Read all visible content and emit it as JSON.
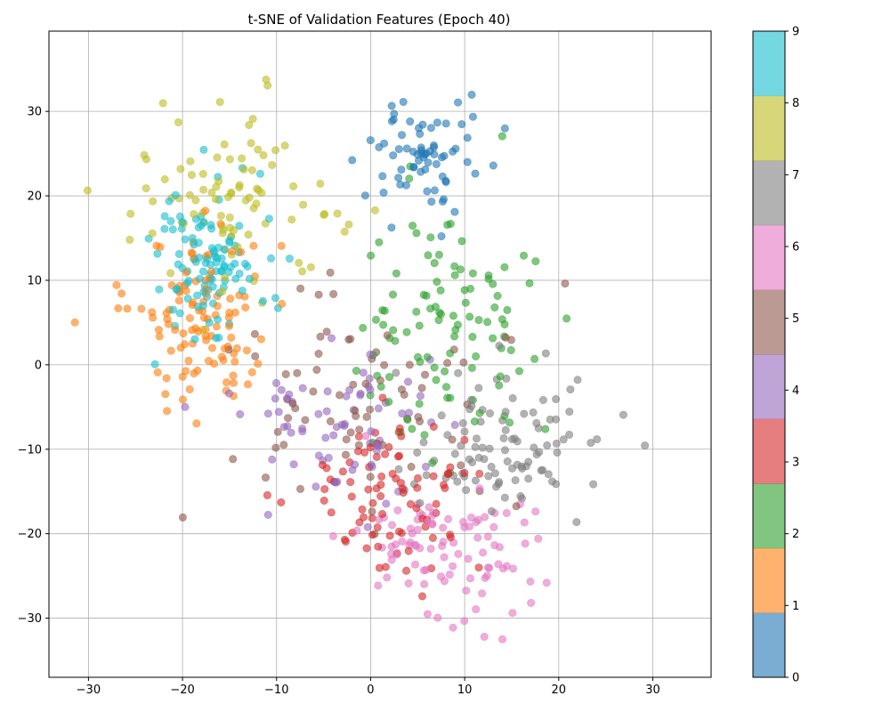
{
  "chart_data": {
    "type": "scatter",
    "title": "t-SNE of Validation Features (Epoch 40)",
    "xlabel": "",
    "ylabel": "",
    "xlim": [
      -34.2,
      36.2
    ],
    "ylim": [
      -37,
      39.5
    ],
    "x_ticks": [
      -30,
      -20,
      -10,
      0,
      10,
      20,
      30
    ],
    "y_ticks": [
      -30,
      -20,
      -10,
      0,
      10,
      20,
      30
    ],
    "grid": true,
    "colormap": "tab10",
    "marker_alpha": 0.6,
    "colorbar": {
      "ticks": [
        0,
        1,
        2,
        3,
        4,
        5,
        6,
        7,
        8,
        9
      ],
      "range": [
        0,
        9
      ],
      "colors": [
        "#1f77b4",
        "#ff7f0e",
        "#2ca02c",
        "#d62728",
        "#9467bd",
        "#8c564b",
        "#e377c2",
        "#7f7f7f",
        "#bcbd22",
        "#17becf"
      ]
    },
    "clusters": [
      {
        "label": 0,
        "center": [
          5.5,
          25.0
        ],
        "spread": [
          5.5,
          6.0
        ],
        "count": 70
      },
      {
        "label": 1,
        "center": [
          -18.0,
          5.0
        ],
        "spread": [
          7.0,
          9.0
        ],
        "count": 110
      },
      {
        "label": 2,
        "center": [
          8.0,
          5.0
        ],
        "spread": [
          9.0,
          14.0
        ],
        "count": 105
      },
      {
        "label": 3,
        "center": [
          2.0,
          -15.0
        ],
        "spread": [
          8.0,
          9.0
        ],
        "count": 85
      },
      {
        "label": 4,
        "center": [
          -2.0,
          -8.0
        ],
        "spread": [
          12.0,
          9.0
        ],
        "count": 70
      },
      {
        "label": 5,
        "center": [
          0.0,
          -5.0
        ],
        "spread": [
          14.0,
          12.0
        ],
        "count": 70
      },
      {
        "label": 6,
        "center": [
          7.0,
          -22.0
        ],
        "spread": [
          9.0,
          7.0
        ],
        "count": 95
      },
      {
        "label": 7,
        "center": [
          15.0,
          -8.0
        ],
        "spread": [
          11.0,
          8.0
        ],
        "count": 100
      },
      {
        "label": 8,
        "center": [
          -15.0,
          20.0
        ],
        "spread": [
          10.0,
          9.0
        ],
        "count": 90
      },
      {
        "label": 9,
        "center": [
          -17.0,
          12.0
        ],
        "spread": [
          6.0,
          8.0
        ],
        "count": 105
      }
    ]
  }
}
